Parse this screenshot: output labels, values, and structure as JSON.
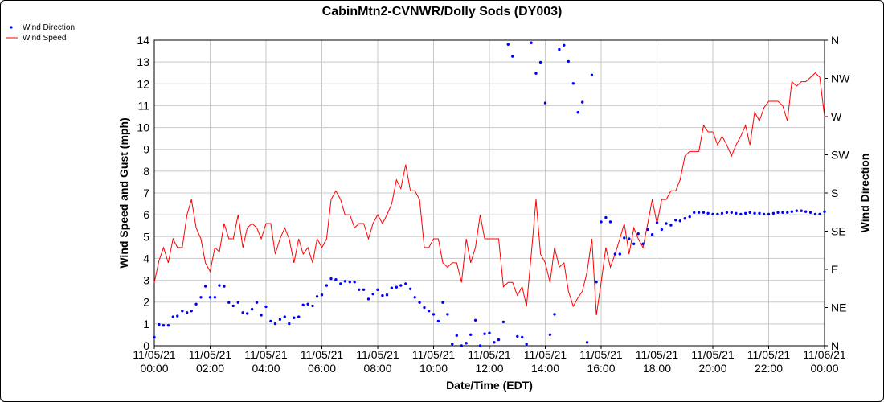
{
  "chart_data": {
    "type": "line",
    "title": "CabinMtn2-CVNWR/Dolly Sods (DY003)",
    "xlabel": "Date/Time (EDT)",
    "ylabel": "Wind Speed and Gust (mph)",
    "y2label": "Wind Direction",
    "legend_position": "top-left",
    "grid": true,
    "xlim": [
      "11/05/21 00:00",
      "11/06/21 00:00"
    ],
    "ylim": [
      0,
      14
    ],
    "y2lim": [
      0,
      360
    ],
    "x_ticks": [
      {
        "date": "11/05/21",
        "time": "00:00",
        "hour": 0
      },
      {
        "date": "11/05/21",
        "time": "02:00",
        "hour": 2
      },
      {
        "date": "11/05/21",
        "time": "04:00",
        "hour": 4
      },
      {
        "date": "11/05/21",
        "time": "06:00",
        "hour": 6
      },
      {
        "date": "11/05/21",
        "time": "08:00",
        "hour": 8
      },
      {
        "date": "11/05/21",
        "time": "10:00",
        "hour": 10
      },
      {
        "date": "11/05/21",
        "time": "12:00",
        "hour": 12
      },
      {
        "date": "11/05/21",
        "time": "14:00",
        "hour": 14
      },
      {
        "date": "11/05/21",
        "time": "16:00",
        "hour": 16
      },
      {
        "date": "11/05/21",
        "time": "18:00",
        "hour": 18
      },
      {
        "date": "11/05/21",
        "time": "20:00",
        "hour": 20
      },
      {
        "date": "11/05/21",
        "time": "22:00",
        "hour": 22
      },
      {
        "date": "11/06/21",
        "time": "00:00",
        "hour": 24
      }
    ],
    "y_ticks": [
      "0",
      "1",
      "2",
      "3",
      "4",
      "5",
      "6",
      "7",
      "8",
      "9",
      "10",
      "11",
      "12",
      "13",
      "14"
    ],
    "y2_ticks": [
      {
        "label": "N",
        "deg": 0
      },
      {
        "label": "NE",
        "deg": 45
      },
      {
        "label": "E",
        "deg": 90
      },
      {
        "label": "SE",
        "deg": 135
      },
      {
        "label": "S",
        "deg": 180
      },
      {
        "label": "SW",
        "deg": 225
      },
      {
        "label": "W",
        "deg": 270
      },
      {
        "label": "NW",
        "deg": 315
      },
      {
        "label": "N",
        "deg": 360
      }
    ],
    "series": [
      {
        "name": "Wind Direction",
        "axis": "right",
        "style": "points",
        "color": "#0000ff",
        "hours": [
          0.0,
          0.17,
          0.33,
          0.5,
          0.67,
          0.83,
          1.0,
          1.17,
          1.33,
          1.5,
          1.67,
          1.83,
          2.0,
          2.17,
          2.33,
          2.5,
          2.67,
          2.83,
          3.0,
          3.17,
          3.33,
          3.5,
          3.67,
          3.83,
          4.0,
          4.17,
          4.33,
          4.5,
          4.67,
          4.83,
          5.0,
          5.17,
          5.33,
          5.5,
          5.67,
          5.83,
          6.0,
          6.17,
          6.33,
          6.5,
          6.67,
          6.83,
          7.0,
          7.17,
          7.33,
          7.5,
          7.67,
          7.83,
          8.0,
          8.17,
          8.33,
          8.5,
          8.67,
          8.83,
          9.0,
          9.17,
          9.33,
          9.5,
          9.67,
          9.83,
          10.0,
          10.17,
          10.33,
          10.5,
          10.67,
          10.83,
          11.0,
          11.17,
          11.33,
          11.5,
          11.67,
          11.83,
          12.0,
          12.17,
          12.33,
          12.5,
          12.67,
          12.83,
          13.0,
          13.17,
          13.33,
          13.5,
          13.67,
          13.83,
          14.0,
          14.17,
          14.33,
          14.5,
          14.67,
          14.83,
          15.0,
          15.17,
          15.33,
          15.5,
          15.67,
          15.83,
          16.0,
          16.17,
          16.33,
          16.5,
          16.67,
          16.83,
          17.0,
          17.17,
          17.33,
          17.5,
          17.67,
          17.83,
          18.0,
          18.17,
          18.33,
          18.5,
          18.67,
          18.83,
          19.0,
          19.17,
          19.33,
          19.5,
          19.67,
          19.83,
          20.0,
          20.17,
          20.33,
          20.5,
          20.67,
          20.83,
          21.0,
          21.17,
          21.33,
          21.5,
          21.67,
          21.83,
          22.0,
          22.17,
          22.33,
          22.5,
          22.67,
          22.83,
          23.0,
          23.17,
          23.33,
          23.5,
          23.67,
          23.83,
          24.0
        ],
        "values": [
          10,
          25,
          24,
          24,
          34,
          35,
          41,
          39,
          41,
          49,
          57,
          70,
          57,
          57,
          71,
          70,
          51,
          47,
          51,
          39,
          38,
          43,
          51,
          36,
          46,
          29,
          26,
          31,
          34,
          26,
          33,
          34,
          48,
          49,
          47,
          58,
          60,
          71,
          79,
          78,
          73,
          76,
          75,
          75,
          66,
          66,
          55,
          61,
          66,
          59,
          60,
          68,
          69,
          71,
          73,
          67,
          57,
          51,
          45,
          41,
          37,
          29,
          51,
          37,
          2,
          12,
          0,
          3,
          13,
          30,
          0,
          14,
          15,
          4,
          7,
          28,
          355,
          341,
          11,
          10,
          2,
          357,
          321,
          334,
          286,
          13,
          37,
          349,
          354,
          335,
          309,
          275,
          287,
          4,
          319,
          75,
          146,
          151,
          146,
          108,
          108,
          127,
          126,
          120,
          132,
          120,
          137,
          131,
          145,
          137,
          144,
          142,
          148,
          147,
          150,
          152,
          157,
          157,
          157,
          156,
          155,
          155,
          156,
          157,
          157,
          156,
          155,
          156,
          157,
          156,
          156,
          155,
          155,
          156,
          157,
          157,
          157,
          158,
          159,
          159,
          158,
          157,
          155,
          155,
          158
        ]
      },
      {
        "name": "Wind Speed",
        "axis": "left",
        "style": "line",
        "color": "#ff0000",
        "hours": [
          0.0,
          0.17,
          0.33,
          0.5,
          0.67,
          0.83,
          1.0,
          1.17,
          1.33,
          1.5,
          1.67,
          1.83,
          2.0,
          2.17,
          2.33,
          2.5,
          2.67,
          2.83,
          3.0,
          3.17,
          3.33,
          3.5,
          3.67,
          3.83,
          4.0,
          4.17,
          4.33,
          4.5,
          4.67,
          4.83,
          5.0,
          5.17,
          5.33,
          5.5,
          5.67,
          5.83,
          6.0,
          6.17,
          6.33,
          6.5,
          6.67,
          6.83,
          7.0,
          7.17,
          7.33,
          7.5,
          7.67,
          7.83,
          8.0,
          8.17,
          8.33,
          8.5,
          8.67,
          8.83,
          9.0,
          9.17,
          9.33,
          9.5,
          9.67,
          9.83,
          10.0,
          10.17,
          10.33,
          10.5,
          10.67,
          10.83,
          11.0,
          11.17,
          11.33,
          11.5,
          11.67,
          11.83,
          12.0,
          12.17,
          12.33,
          12.5,
          12.67,
          12.83,
          13.0,
          13.17,
          13.33,
          13.5,
          13.67,
          13.83,
          14.0,
          14.17,
          14.33,
          14.5,
          14.67,
          14.83,
          15.0,
          15.17,
          15.33,
          15.5,
          15.67,
          15.83,
          16.0,
          16.17,
          16.33,
          16.5,
          16.67,
          16.83,
          17.0,
          17.17,
          17.33,
          17.5,
          17.67,
          17.83,
          18.0,
          18.17,
          18.33,
          18.5,
          18.67,
          18.83,
          19.0,
          19.17,
          19.33,
          19.5,
          19.67,
          19.83,
          20.0,
          20.17,
          20.33,
          20.5,
          20.67,
          20.83,
          21.0,
          21.17,
          21.33,
          21.5,
          21.67,
          21.83,
          22.0,
          22.17,
          22.33,
          22.5,
          22.67,
          22.83,
          23.0,
          23.17,
          23.33,
          23.5,
          23.67,
          23.83,
          24.0
        ],
        "values": [
          2.9,
          3.9,
          4.5,
          3.8,
          4.9,
          4.5,
          4.5,
          6.0,
          6.7,
          5.4,
          4.9,
          3.8,
          3.4,
          4.5,
          4.3,
          5.6,
          4.9,
          4.9,
          6.0,
          4.5,
          5.4,
          5.6,
          5.4,
          4.9,
          5.6,
          5.6,
          4.2,
          4.9,
          5.4,
          4.9,
          3.8,
          4.9,
          4.2,
          4.5,
          3.8,
          4.9,
          4.5,
          4.9,
          6.7,
          7.1,
          6.7,
          6.0,
          6.0,
          5.4,
          5.6,
          5.6,
          4.9,
          5.6,
          6.0,
          5.6,
          6.0,
          6.5,
          7.6,
          7.2,
          8.3,
          7.1,
          7.1,
          6.7,
          4.5,
          4.5,
          4.9,
          4.9,
          3.8,
          3.6,
          3.8,
          3.8,
          2.9,
          4.9,
          3.8,
          4.5,
          6.0,
          4.9,
          4.9,
          4.9,
          4.9,
          2.7,
          2.9,
          2.9,
          2.3,
          2.7,
          1.8,
          4.2,
          6.7,
          4.2,
          3.8,
          2.9,
          4.5,
          3.6,
          3.8,
          2.5,
          1.8,
          2.2,
          2.5,
          3.4,
          4.9,
          1.4,
          2.9,
          4.5,
          3.6,
          4.2,
          4.9,
          5.6,
          4.2,
          5.4,
          4.9,
          4.5,
          5.6,
          6.7,
          5.6,
          6.7,
          6.7,
          7.1,
          7.1,
          7.6,
          8.7,
          8.9,
          8.9,
          8.9,
          10.1,
          9.8,
          9.8,
          9.2,
          9.6,
          9.2,
          8.7,
          9.2,
          9.6,
          10.1,
          9.2,
          10.7,
          10.3,
          10.9,
          11.2,
          11.2,
          11.2,
          11.0,
          10.3,
          12.1,
          11.9,
          12.1,
          12.1,
          12.3,
          12.5,
          12.3,
          10.5
        ]
      }
    ]
  }
}
